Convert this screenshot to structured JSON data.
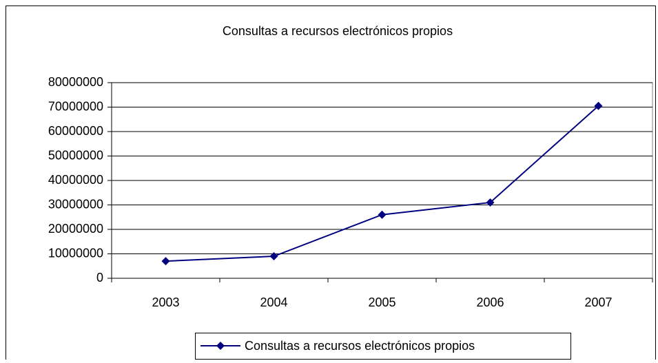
{
  "chart_data": {
    "type": "line",
    "title": "Consultas a recursos electrónicos propios",
    "categories": [
      "2003",
      "2004",
      "2005",
      "2006",
      "2007"
    ],
    "series": [
      {
        "name": "Consultas a recursos electrónicos propios",
        "color": "#000080",
        "values": [
          7000000,
          9000000,
          26000000,
          31000000,
          70500000
        ]
      }
    ],
    "ylim": [
      0,
      80000000
    ],
    "yticks": [
      0,
      10000000,
      20000000,
      30000000,
      40000000,
      50000000,
      60000000,
      70000000,
      80000000
    ],
    "grid": true,
    "legend": "bottom"
  }
}
